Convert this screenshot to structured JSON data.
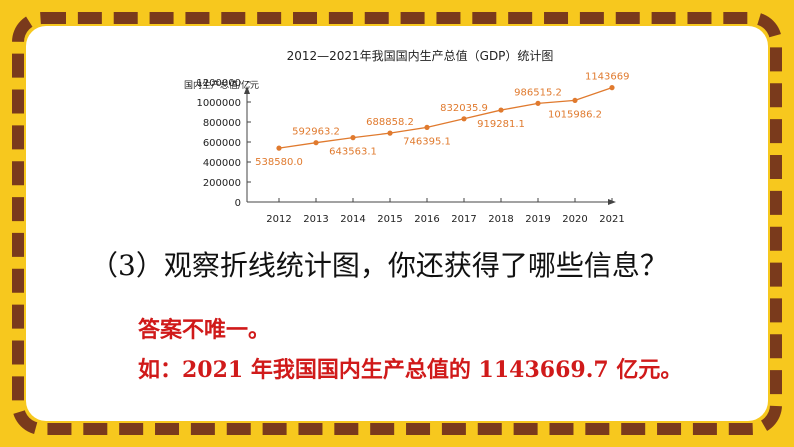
{
  "colors": {
    "background": "#f7c81e",
    "border": "#7a3a1c",
    "line": "#e07a2e",
    "answer": "#d01a1a"
  },
  "question": "（3）观察折线统计图，你还获得了哪些信息？",
  "answer_line1": "答案不唯一。",
  "answer_line2": "如：2021 年我国国内生产总值的 1143669.7 亿元。",
  "chart_data": {
    "type": "line",
    "title": "2012—2021年我国国内生产总值（GDP）统计图",
    "ylabel": "国内生产总值/亿元",
    "xlabel": "年份",
    "categories": [
      "2012",
      "2013",
      "2014",
      "2015",
      "2016",
      "2017",
      "2018",
      "2019",
      "2020",
      "2021"
    ],
    "values": [
      538580.0,
      592963.2,
      643563.1,
      688858.2,
      746395.1,
      832035.9,
      919281.1,
      986515.2,
      1015986.2,
      1143669.7
    ],
    "data_labels": [
      "538580.0",
      "592963.2",
      "643563.1",
      "688858.2",
      "746395.1",
      "832035.9",
      "919281.1",
      "986515.2",
      "1015986.2",
      "1143669.7"
    ],
    "label_positions": [
      "below",
      "above",
      "below",
      "above",
      "below",
      "above",
      "below",
      "above",
      "below",
      "above"
    ],
    "ylim": [
      0,
      1200000
    ],
    "yticks": [
      "0",
      "200000",
      "400000",
      "600000",
      "800000",
      "1000000",
      "1200000"
    ],
    "grid": false
  }
}
